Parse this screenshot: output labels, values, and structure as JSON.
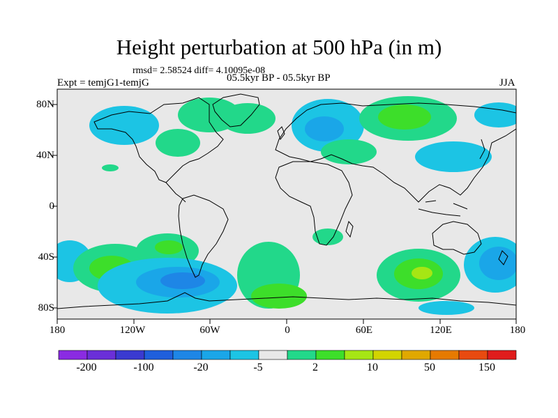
{
  "title": "Height perturbation at 500 hPa (in m)",
  "stats": "rmsd= 2.58524  diff= 4.10095e-08",
  "experiment": "Expt = temjG1-temjG",
  "period": "05.5kyr BP - 05.5kyr BP",
  "season": "JJA",
  "lat_labels": [
    "80N",
    "40N",
    "0",
    "40S",
    "80S"
  ],
  "lon_labels": [
    "180",
    "120W",
    "60W",
    "0",
    "60E",
    "120E",
    "180"
  ],
  "colorbar": {
    "colors": [
      "#8a2be2",
      "#6a2fd8",
      "#3a3ad0",
      "#1f5fdc",
      "#1e86e6",
      "#1aa6e8",
      "#1cc4e4",
      "#e8e8e8",
      "#22d88a",
      "#3dde2a",
      "#a6e614",
      "#d2d400",
      "#e0a800",
      "#e67a00",
      "#e84a10",
      "#e01c1c"
    ],
    "labels": [
      "-200",
      "-100",
      "-20",
      "-5",
      "2",
      "10",
      "50",
      "150"
    ]
  },
  "map_colors": {
    "background": "#e8e8e8",
    "coast": "#000000"
  }
}
